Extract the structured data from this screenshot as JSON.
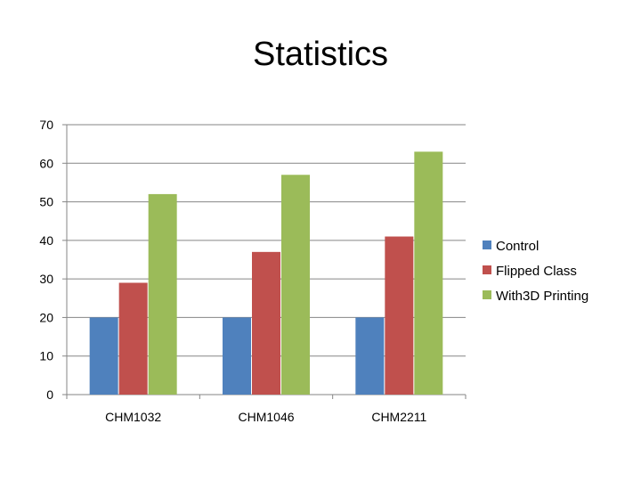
{
  "chart_data": {
    "type": "bar",
    "title": "Statistics",
    "categories": [
      "CHM1032",
      "CHM1046",
      "CHM2211"
    ],
    "series": [
      {
        "name": "Control",
        "values": [
          20,
          20,
          20
        ],
        "color": "#4F81BD"
      },
      {
        "name": "Flipped Class",
        "values": [
          29,
          37,
          41
        ],
        "color": "#C0504D"
      },
      {
        "name": "With3D Printing",
        "values": [
          52,
          57,
          63
        ],
        "color": "#9BBB59"
      }
    ],
    "ylim": [
      0,
      70
    ],
    "yticks": [
      0,
      10,
      20,
      30,
      40,
      50,
      60,
      70
    ],
    "grid": true,
    "legend": "right"
  }
}
